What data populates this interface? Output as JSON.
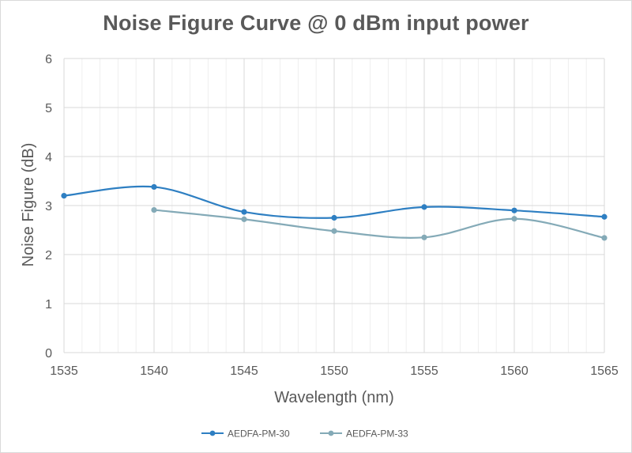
{
  "chart_data": {
    "type": "line",
    "title": "Noise Figure Curve @ 0 dBm input power",
    "xlabel": "Wavelength (nm)",
    "ylabel": "Noise Figure (dB)",
    "xlim": [
      1535,
      1565
    ],
    "ylim": [
      0,
      6
    ],
    "xticks": [
      1535,
      1540,
      1545,
      1550,
      1555,
      1560,
      1565
    ],
    "yticks": [
      0,
      1,
      2,
      3,
      4,
      5,
      6
    ],
    "x_minor_step": 1,
    "grid": true,
    "smooth": true,
    "legend_position": "bottom",
    "series": [
      {
        "name": "AEDFA-PM-30",
        "color": "#2e7fc2",
        "x": [
          1535,
          1540,
          1545,
          1550,
          1555,
          1560,
          1565
        ],
        "y": [
          3.2,
          3.38,
          2.87,
          2.75,
          2.97,
          2.9,
          2.77
        ]
      },
      {
        "name": "AEDFA-PM-33",
        "color": "#84aab7",
        "x": [
          1540,
          1545,
          1550,
          1555,
          1560,
          1565
        ],
        "y": [
          2.91,
          2.72,
          2.48,
          2.35,
          2.73,
          2.34
        ]
      }
    ]
  }
}
